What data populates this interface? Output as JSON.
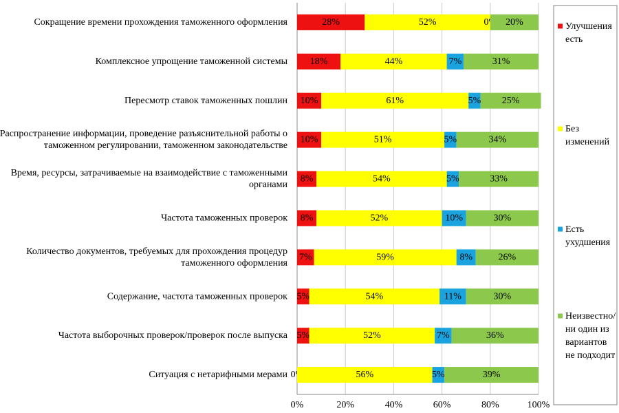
{
  "chart_data": {
    "type": "bar",
    "orientation": "horizontal",
    "stacked": true,
    "percent": true,
    "categories": [
      [
        "Сокращение времени прохождения таможенного оформления"
      ],
      [
        "Комплексное упрощение таможенной системы"
      ],
      [
        "Пересмотр ставок таможенных пошлин"
      ],
      [
        "Распространение информации, проведение разъяснительной работы о",
        "таможенном регулировании, таможенном законодательстве"
      ],
      [
        "Время, ресурсы, затрачиваемые на взаимодействие с таможенными",
        "органами"
      ],
      [
        "Частота таможенных проверок"
      ],
      [
        "Количество документов, требуемых для прохождения процедур",
        "таможенного оформления"
      ],
      [
        "Содержание, частота таможенных проверок"
      ],
      [
        "Частота выборочных проверок/проверок после выпуска"
      ],
      [
        "Ситуация с нетарифными мерами"
      ]
    ],
    "series": [
      {
        "name": [
          "Улучшения",
          "есть"
        ],
        "color": "#ee1111",
        "values": [
          28,
          18,
          10,
          10,
          8,
          8,
          7,
          5,
          5,
          0
        ]
      },
      {
        "name": [
          "Без",
          "изменений"
        ],
        "color": "#ffff00",
        "values": [
          52,
          44,
          61,
          51,
          54,
          52,
          59,
          54,
          52,
          56
        ]
      },
      {
        "name": [
          "Есть",
          "ухудшения"
        ],
        "color": "#1aa3de",
        "values": [
          0,
          7,
          5,
          5,
          5,
          10,
          8,
          11,
          7,
          5
        ]
      },
      {
        "name": [
          "Неизвестно/",
          "ни один из",
          "вариантов",
          "не подходит"
        ],
        "color": "#8cc84b",
        "values": [
          20,
          31,
          25,
          34,
          33,
          30,
          26,
          30,
          36,
          39
        ]
      }
    ],
    "xticks": [
      "0%",
      "20%",
      "40%",
      "60%",
      "80%",
      "100%"
    ],
    "xlim": [
      0,
      100
    ],
    "grid": true,
    "legend": "right"
  }
}
